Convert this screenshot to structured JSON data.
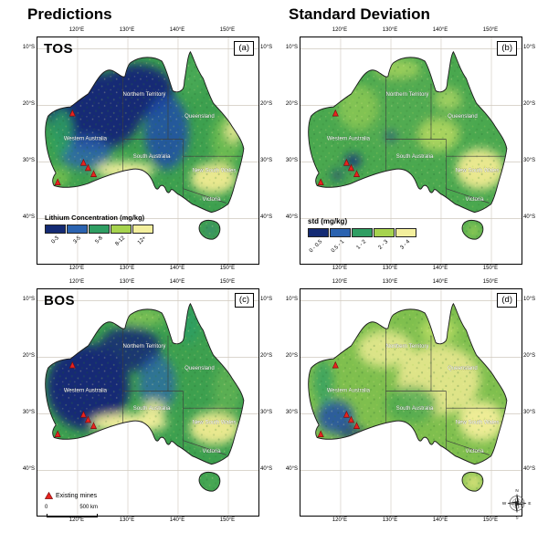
{
  "titles": {
    "predictions": "Predictions",
    "std": "Standard Deviation"
  },
  "panels": [
    {
      "letter": "(a)",
      "label": "TOS"
    },
    {
      "letter": "(b)",
      "label": ""
    },
    {
      "letter": "(c)",
      "label": "BOS"
    },
    {
      "letter": "(d)",
      "label": ""
    }
  ],
  "ticks": {
    "lon": [
      "120°E",
      "130°E",
      "140°E",
      "150°E"
    ],
    "lat": [
      "10°S",
      "20°S",
      "30°S",
      "40°S"
    ]
  },
  "states": [
    "Western Australia",
    "Northern Territory",
    "Queensland",
    "South Australia",
    "New South Wales",
    "Victoria"
  ],
  "legend_prediction": {
    "title": "Lithium Concentration (mg/kg)",
    "classes": [
      {
        "label": "0-3",
        "color": "#142b74"
      },
      {
        "label": "3-5",
        "color": "#2b63b0"
      },
      {
        "label": "5-8",
        "color": "#2f9e63"
      },
      {
        "label": "8-12",
        "color": "#a6d34f"
      },
      {
        "label": "12+",
        "color": "#f3ef9d"
      }
    ]
  },
  "legend_std": {
    "title": "std (mg/kg)",
    "classes": [
      {
        "label": "0 - 0.5",
        "color": "#142b74"
      },
      {
        "label": "0.5 - 1",
        "color": "#2b63b0"
      },
      {
        "label": "1 - 2",
        "color": "#2f9e63"
      },
      {
        "label": "2 - 3",
        "color": "#a6d34f"
      },
      {
        "label": "3 - 4",
        "color": "#f3ef9d"
      }
    ]
  },
  "mines_legend": {
    "label": "Existing mines",
    "scale_min": "0",
    "scale_max": "500 km"
  },
  "compass": {
    "n": "N",
    "e": "E",
    "s": "S",
    "w": "W"
  },
  "colors": {
    "mine_marker": "#e8231f",
    "coastline": "#1b1b1b",
    "base_green": "#3da04f"
  }
}
